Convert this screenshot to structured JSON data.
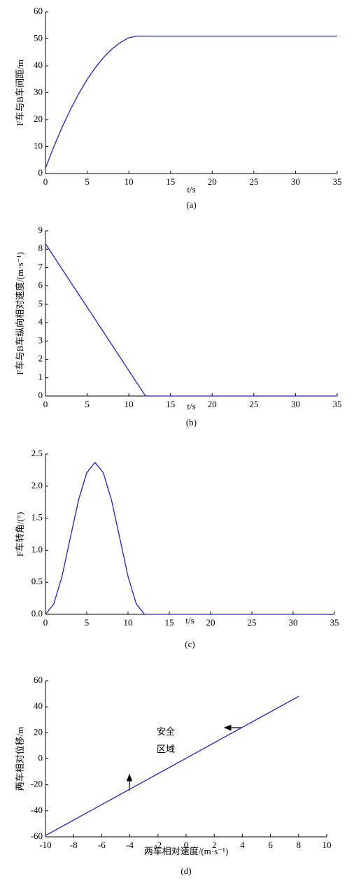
{
  "chart_data": [
    {
      "type": "line",
      "ylabel": "F车与B车间距/m",
      "xlabel": "t/s",
      "caption": "(a)",
      "x": [
        0,
        1,
        2,
        3,
        4,
        5,
        6,
        7,
        8,
        9,
        10,
        11,
        12,
        35
      ],
      "values": [
        2,
        9.95,
        17.2,
        23.8,
        29.7,
        34.9,
        39.4,
        43.2,
        46.3,
        48.7,
        50.4,
        51,
        51,
        51
      ],
      "color": "#2020d0",
      "xlim": [
        0,
        35
      ],
      "ylim": [
        0,
        60
      ],
      "xticks": [
        0,
        5,
        10,
        15,
        20,
        25,
        30,
        35
      ],
      "yticks": [
        0,
        10,
        20,
        30,
        40,
        50,
        60
      ]
    },
    {
      "type": "line",
      "ylabel": "F车与B车纵向相对速度/(m·s⁻¹)",
      "xlabel": "t/s",
      "caption": "(b)",
      "x": [
        0,
        12,
        35
      ],
      "values": [
        8.3,
        0,
        0
      ],
      "color": "#2020d0",
      "xlim": [
        0,
        35
      ],
      "ylim": [
        0,
        9
      ],
      "xticks": [
        0,
        5,
        10,
        15,
        20,
        25,
        30,
        35
      ],
      "yticks": [
        0,
        1,
        2,
        3,
        4,
        5,
        6,
        7,
        8,
        9
      ]
    },
    {
      "type": "line",
      "ylabel": "F车转角/(°)",
      "xlabel": "t/s",
      "caption": "(c)",
      "x": [
        0,
        1,
        2,
        3,
        4,
        5,
        6,
        7,
        8,
        9,
        10,
        11,
        12,
        35
      ],
      "values": [
        0,
        0.16,
        0.59,
        1.19,
        1.78,
        2.21,
        2.37,
        2.21,
        1.78,
        1.19,
        0.59,
        0.16,
        0,
        0
      ],
      "color": "#2020d0",
      "xlim": [
        0,
        35
      ],
      "ylim": [
        0,
        2.5
      ],
      "xticks": [
        0,
        5,
        10,
        15,
        20,
        25,
        30,
        35
      ],
      "yticks": [
        {
          "value": 0,
          "label": "0.0"
        },
        0.5,
        {
          "value": 1,
          "label": "1.0"
        },
        1.5,
        {
          "value": 2,
          "label": "2.0"
        },
        2.5
      ]
    },
    {
      "type": "line",
      "ylabel": "两车相对位移/m",
      "xlabel": "两车相对速度/(m·s⁻¹)",
      "caption": "(d)",
      "annotations": [
        "安全",
        "区域"
      ],
      "x": [
        -10,
        8
      ],
      "values": [
        -59,
        48
      ],
      "color": "#2020d0",
      "xlim": [
        -10,
        10
      ],
      "ylim": [
        -60,
        60
      ],
      "xticks": [
        -10,
        -8,
        -6,
        -4,
        -2,
        0,
        2,
        4,
        6,
        8,
        10
      ],
      "yticks": [
        -60,
        -40,
        -20,
        0,
        20,
        40,
        60
      ]
    }
  ]
}
